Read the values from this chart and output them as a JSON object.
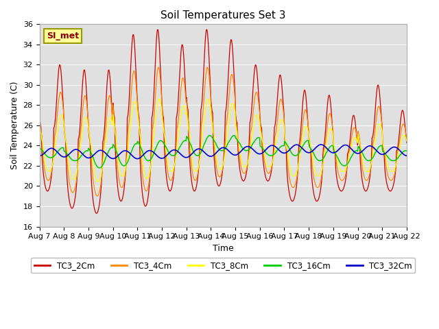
{
  "title": "Soil Temperatures Set 3",
  "xlabel": "Time",
  "ylabel": "Soil Temperature (C)",
  "ylim": [
    16,
    36
  ],
  "yticks": [
    16,
    18,
    20,
    22,
    24,
    26,
    28,
    30,
    32,
    34,
    36
  ],
  "colors": {
    "TC3_2Cm": "#cc0000",
    "TC3_4Cm": "#ff8800",
    "TC3_8Cm": "#ffff00",
    "TC3_16Cm": "#00cc00",
    "TC3_32Cm": "#0000cc"
  },
  "bg_color": "#e0e0e0",
  "annotation_text": "SI_met",
  "annotation_bg": "#ffff99",
  "annotation_border": "#999900",
  "annotation_text_color": "#880000",
  "date_labels": [
    "Aug 7",
    "Aug 8",
    "Aug 9",
    "Aug 10",
    "Aug 11",
    "Aug 12",
    "Aug 13",
    "Aug 14",
    "Aug 15",
    "Aug 16",
    "Aug 17",
    "Aug 18",
    "Aug 19",
    "Aug 20",
    "Aug 21",
    "Aug 22"
  ],
  "legend_labels": [
    "TC3_2Cm",
    "TC3_4Cm",
    "TC3_8Cm",
    "TC3_16Cm",
    "TC3_32Cm"
  ],
  "mean_2cm": 22.8,
  "mean_32cm": 23.5,
  "n_days": 15
}
